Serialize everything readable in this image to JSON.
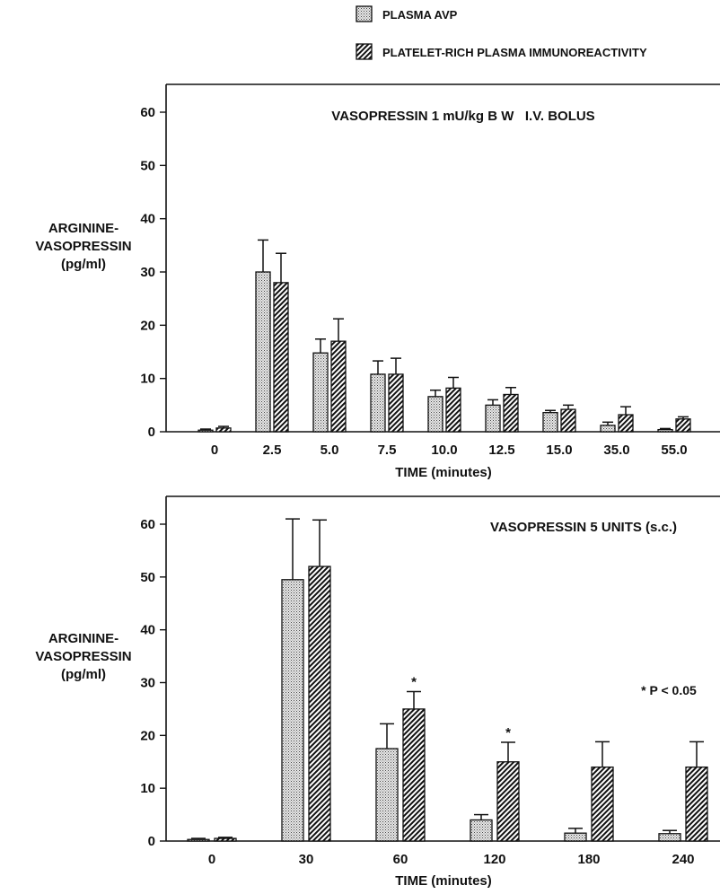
{
  "legend": {
    "items": [
      {
        "label": "PLASMA AVP",
        "pattern": "dots"
      },
      {
        "label": "PLATELET-RICH PLASMA IMMUNOREACTIVITY",
        "pattern": "hatch"
      }
    ]
  },
  "chart_data": [
    {
      "type": "bar",
      "title": "VASOPRESSIN 1 mU/kg B W   I.V. BOLUS",
      "xlabel": "TIME (minutes)",
      "ylabel": [
        "ARGININE-",
        "VASOPRESSIN",
        "(pg/ml)"
      ],
      "ylim": [
        0,
        60
      ],
      "yticks": [
        0,
        10,
        20,
        30,
        40,
        50,
        60
      ],
      "grid": false,
      "legend_position": "top",
      "categories": [
        "0",
        "2.5",
        "5.0",
        "7.5",
        "10.0",
        "12.5",
        "15.0",
        "35.0",
        "55.0"
      ],
      "series": [
        {
          "name": "PLASMA AVP",
          "pattern": "dots",
          "values": [
            0.3,
            30,
            14.8,
            10.8,
            6.6,
            5.0,
            3.6,
            1.2,
            0.4
          ],
          "errors": [
            0.2,
            6.0,
            2.6,
            2.5,
            1.2,
            1.0,
            0.4,
            0.6,
            0.2
          ]
        },
        {
          "name": "PLATELET-RICH PLASMA IMMUNOREACTIVITY",
          "pattern": "hatch",
          "values": [
            0.7,
            28,
            17,
            10.8,
            8.2,
            7.0,
            4.2,
            3.2,
            2.4
          ],
          "errors": [
            0.3,
            5.5,
            4.2,
            3.0,
            2.0,
            1.3,
            0.8,
            1.5,
            0.4
          ]
        }
      ],
      "significant": []
    },
    {
      "type": "bar",
      "title": "VASOPRESSIN 5 UNITS (s.c.)",
      "xlabel": "TIME (minutes)",
      "ylabel": [
        "ARGININE-",
        "VASOPRESSIN",
        "(pg/ml)"
      ],
      "ylim": [
        0,
        60
      ],
      "yticks": [
        0,
        10,
        20,
        30,
        40,
        50,
        60
      ],
      "grid": false,
      "categories": [
        "0",
        "30",
        "60",
        "120",
        "180",
        "240"
      ],
      "series": [
        {
          "name": "PLASMA AVP",
          "pattern": "dots",
          "values": [
            0.3,
            49.5,
            17.5,
            4.0,
            1.5,
            1.4
          ],
          "errors": [
            0.2,
            11.5,
            4.7,
            1.0,
            0.9,
            0.6
          ]
        },
        {
          "name": "PLATELET-RICH PLASMA IMMUNOREACTIVITY",
          "pattern": "hatch",
          "values": [
            0.5,
            52,
            25,
            15,
            14,
            14
          ],
          "errors": [
            0.2,
            8.8,
            3.3,
            3.7,
            4.8,
            4.8
          ]
        }
      ],
      "significant": [
        {
          "category": "60",
          "series": 1
        },
        {
          "category": "120",
          "series": 1
        }
      ],
      "annotation": "* P < 0.05"
    }
  ]
}
